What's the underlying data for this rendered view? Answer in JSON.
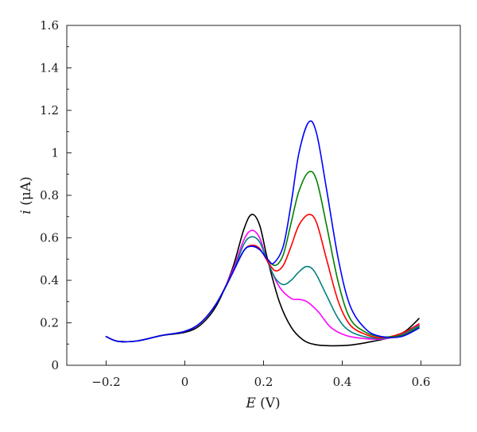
{
  "chart_data": {
    "type": "line",
    "xlabel_var": "E",
    "xlabel_unit": " (V)",
    "ylabel_var": "i",
    "ylabel_unit": " (μA)",
    "xlim": [
      -0.3,
      0.7
    ],
    "ylim": [
      0,
      1.6
    ],
    "x_ticks": [
      -0.2,
      0,
      0.2,
      0.4,
      0.6
    ],
    "x_tick_labels": [
      "−0.2",
      "0",
      "0.2",
      "0.4",
      "0.6"
    ],
    "y_ticks": [
      0,
      0.2,
      0.4,
      0.6,
      0.8,
      1,
      1.2,
      1.4,
      1.6
    ],
    "y_tick_labels": [
      "0",
      "0.2",
      "0.4",
      "0.6",
      "0.8",
      "1",
      "1.2",
      "1.4",
      "1.6"
    ],
    "grid": false,
    "series": [
      {
        "color": "#000000",
        "points": [
          [
            -0.2,
            0.135
          ],
          [
            -0.17,
            0.113
          ],
          [
            -0.12,
            0.115
          ],
          [
            -0.06,
            0.14
          ],
          [
            0.0,
            0.155
          ],
          [
            0.04,
            0.19
          ],
          [
            0.08,
            0.28
          ],
          [
            0.12,
            0.45
          ],
          [
            0.15,
            0.64
          ],
          [
            0.17,
            0.71
          ],
          [
            0.19,
            0.66
          ],
          [
            0.21,
            0.5
          ],
          [
            0.24,
            0.3
          ],
          [
            0.27,
            0.18
          ],
          [
            0.3,
            0.12
          ],
          [
            0.33,
            0.098
          ],
          [
            0.37,
            0.092
          ],
          [
            0.42,
            0.095
          ],
          [
            0.47,
            0.11
          ],
          [
            0.52,
            0.13
          ],
          [
            0.56,
            0.16
          ],
          [
            0.595,
            0.22
          ]
        ]
      },
      {
        "color": "#ff00ff",
        "points": [
          [
            -0.2,
            0.135
          ],
          [
            -0.17,
            0.113
          ],
          [
            -0.12,
            0.115
          ],
          [
            -0.06,
            0.14
          ],
          [
            0.0,
            0.16
          ],
          [
            0.04,
            0.2
          ],
          [
            0.08,
            0.29
          ],
          [
            0.12,
            0.44
          ],
          [
            0.15,
            0.59
          ],
          [
            0.17,
            0.635
          ],
          [
            0.19,
            0.6
          ],
          [
            0.21,
            0.49
          ],
          [
            0.24,
            0.37
          ],
          [
            0.27,
            0.315
          ],
          [
            0.29,
            0.31
          ],
          [
            0.31,
            0.3
          ],
          [
            0.34,
            0.25
          ],
          [
            0.37,
            0.18
          ],
          [
            0.41,
            0.14
          ],
          [
            0.46,
            0.125
          ],
          [
            0.51,
            0.125
          ],
          [
            0.56,
            0.15
          ],
          [
            0.595,
            0.19
          ]
        ]
      },
      {
        "color": "#008080",
        "points": [
          [
            -0.2,
            0.135
          ],
          [
            -0.17,
            0.113
          ],
          [
            -0.12,
            0.115
          ],
          [
            -0.06,
            0.14
          ],
          [
            0.0,
            0.16
          ],
          [
            0.04,
            0.2
          ],
          [
            0.08,
            0.29
          ],
          [
            0.12,
            0.43
          ],
          [
            0.15,
            0.57
          ],
          [
            0.17,
            0.605
          ],
          [
            0.19,
            0.58
          ],
          [
            0.21,
            0.49
          ],
          [
            0.23,
            0.41
          ],
          [
            0.25,
            0.38
          ],
          [
            0.27,
            0.4
          ],
          [
            0.29,
            0.44
          ],
          [
            0.31,
            0.465
          ],
          [
            0.33,
            0.44
          ],
          [
            0.36,
            0.33
          ],
          [
            0.39,
            0.22
          ],
          [
            0.42,
            0.16
          ],
          [
            0.47,
            0.13
          ],
          [
            0.52,
            0.13
          ],
          [
            0.56,
            0.155
          ],
          [
            0.595,
            0.185
          ]
        ]
      },
      {
        "color": "#ff0000",
        "points": [
          [
            -0.2,
            0.135
          ],
          [
            -0.17,
            0.113
          ],
          [
            -0.12,
            0.115
          ],
          [
            -0.06,
            0.14
          ],
          [
            0.0,
            0.16
          ],
          [
            0.04,
            0.2
          ],
          [
            0.08,
            0.29
          ],
          [
            0.12,
            0.43
          ],
          [
            0.15,
            0.54
          ],
          [
            0.17,
            0.565
          ],
          [
            0.19,
            0.55
          ],
          [
            0.21,
            0.49
          ],
          [
            0.23,
            0.445
          ],
          [
            0.25,
            0.47
          ],
          [
            0.27,
            0.56
          ],
          [
            0.29,
            0.66
          ],
          [
            0.315,
            0.71
          ],
          [
            0.335,
            0.67
          ],
          [
            0.36,
            0.5
          ],
          [
            0.39,
            0.3
          ],
          [
            0.42,
            0.19
          ],
          [
            0.46,
            0.145
          ],
          [
            0.5,
            0.13
          ],
          [
            0.55,
            0.15
          ],
          [
            0.595,
            0.195
          ]
        ]
      },
      {
        "color": "#008000",
        "points": [
          [
            -0.2,
            0.135
          ],
          [
            -0.17,
            0.113
          ],
          [
            -0.12,
            0.115
          ],
          [
            -0.06,
            0.14
          ],
          [
            0.0,
            0.16
          ],
          [
            0.04,
            0.2
          ],
          [
            0.08,
            0.29
          ],
          [
            0.12,
            0.43
          ],
          [
            0.15,
            0.54
          ],
          [
            0.17,
            0.56
          ],
          [
            0.19,
            0.545
          ],
          [
            0.21,
            0.5
          ],
          [
            0.23,
            0.47
          ],
          [
            0.25,
            0.52
          ],
          [
            0.27,
            0.67
          ],
          [
            0.29,
            0.82
          ],
          [
            0.315,
            0.91
          ],
          [
            0.335,
            0.87
          ],
          [
            0.36,
            0.66
          ],
          [
            0.39,
            0.39
          ],
          [
            0.42,
            0.22
          ],
          [
            0.46,
            0.155
          ],
          [
            0.5,
            0.135
          ],
          [
            0.55,
            0.14
          ],
          [
            0.595,
            0.18
          ]
        ]
      },
      {
        "color": "#0000ff",
        "points": [
          [
            -0.2,
            0.135
          ],
          [
            -0.17,
            0.113
          ],
          [
            -0.12,
            0.115
          ],
          [
            -0.06,
            0.14
          ],
          [
            0.0,
            0.16
          ],
          [
            0.04,
            0.2
          ],
          [
            0.08,
            0.29
          ],
          [
            0.12,
            0.43
          ],
          [
            0.15,
            0.54
          ],
          [
            0.17,
            0.56
          ],
          [
            0.19,
            0.545
          ],
          [
            0.21,
            0.5
          ],
          [
            0.225,
            0.48
          ],
          [
            0.25,
            0.56
          ],
          [
            0.27,
            0.76
          ],
          [
            0.29,
            1.0
          ],
          [
            0.315,
            1.145
          ],
          [
            0.335,
            1.09
          ],
          [
            0.36,
            0.83
          ],
          [
            0.39,
            0.5
          ],
          [
            0.42,
            0.28
          ],
          [
            0.46,
            0.17
          ],
          [
            0.5,
            0.135
          ],
          [
            0.55,
            0.135
          ],
          [
            0.595,
            0.175
          ]
        ]
      }
    ]
  }
}
